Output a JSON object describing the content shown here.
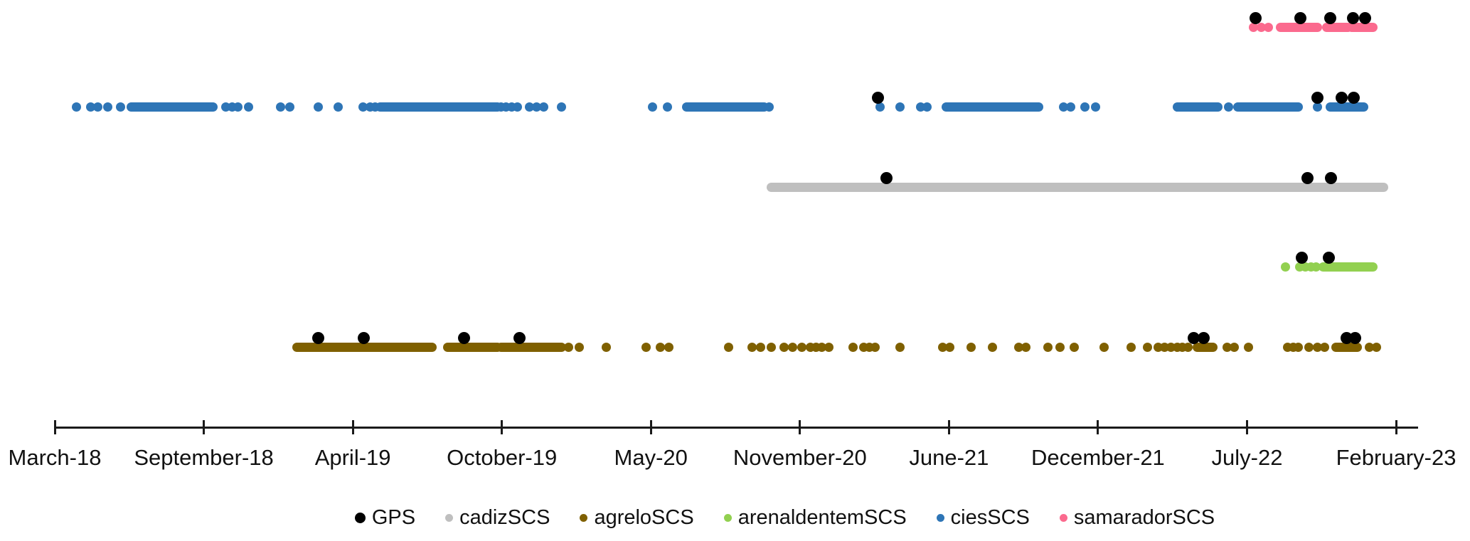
{
  "chart_data": {
    "type": "scatter",
    "title": "",
    "description": "Timeline dot plot of detections per station; x axis is time, each series occupies one horizontal row. t values are months elapsed since March 2018 (0 = March-18, 59 = February-23). Bands are dense runs of overlapping points given as [start,end].",
    "x_axis": {
      "tick_labels": [
        "March-18",
        "September-18",
        "April-19",
        "October-19",
        "May-20",
        "November-20",
        "June-21",
        "December-21",
        "July-22",
        "February-23"
      ],
      "tick_month_offsets": [
        0,
        6,
        13,
        19,
        26,
        32,
        39,
        45,
        52,
        59
      ],
      "unit": "months since 2018-03"
    },
    "series": [
      {
        "name": "samaradorSCS",
        "color": "#FB6A8E",
        "row": 0,
        "points": [
          52.3,
          52.67,
          53.0
        ],
        "bands": [
          [
            53.57,
            55.3
          ],
          [
            55.73,
            56.73
          ],
          [
            56.9,
            57.9
          ]
        ]
      },
      {
        "name": "ciesSCS",
        "color": "#2E75B6",
        "row": 1,
        "points": [
          0.86,
          1.46,
          1.74,
          2.14,
          2.66,
          7.04,
          7.34,
          7.61,
          8.11,
          9.62,
          10.05,
          11.39,
          12.3,
          13.4,
          13.69,
          13.89,
          18.97,
          19.2,
          19.47,
          19.74,
          20.31,
          20.64,
          20.98,
          21.81,
          26.06,
          26.66,
          30.77,
          35.75,
          36.69,
          37.66,
          37.96,
          43.6,
          43.89,
          44.46,
          44.89,
          51.13,
          55.3
        ],
        "bands": [
          [
            3.09,
            6.44
          ],
          [
            14.11,
            18.83
          ],
          [
            27.43,
            30.57
          ],
          [
            38.87,
            42.6
          ],
          [
            48.72,
            50.63
          ],
          [
            51.56,
            54.4
          ],
          [
            55.9,
            57.47
          ]
        ]
      },
      {
        "name": "cadizSCS",
        "color": "#BFBFBF",
        "row": 2,
        "points": [],
        "bands": [
          [
            30.86,
            58.4
          ]
        ]
      },
      {
        "name": "arenaldentemSCS",
        "color": "#92D050",
        "row": 3,
        "points": [
          53.8,
          54.47,
          54.73,
          55.0,
          55.23
        ],
        "bands": [
          [
            55.57,
            57.9
          ]
        ]
      },
      {
        "name": "agreloSCS",
        "color": "#7F6000",
        "row": 4,
        "points": [
          22.15,
          22.65,
          23.89,
          25.77,
          26.37,
          26.71,
          29.14,
          30.06,
          30.43,
          30.86,
          31.37,
          31.71,
          32.1,
          32.5,
          32.77,
          33.04,
          33.37,
          34.51,
          35.01,
          35.25,
          35.52,
          36.69,
          38.7,
          39.03,
          39.89,
          40.74,
          41.8,
          42.09,
          42.97,
          43.46,
          44.03,
          45.3,
          46.54,
          47.31,
          47.81,
          48.11,
          48.42,
          48.72,
          48.95,
          49.22,
          51.06,
          51.4,
          52.07,
          53.9,
          54.17,
          54.4,
          54.9,
          55.3,
          55.63,
          57.73,
          58.07
        ],
        "bands": [
          [
            10.39,
            16.2
          ],
          [
            16.83,
            18.83
          ],
          [
            18.97,
            21.81
          ],
          [
            49.65,
            50.39
          ],
          [
            56.17,
            57.17
          ]
        ]
      },
      {
        "name": "GPS",
        "color": "#000000",
        "overlay": true,
        "points_by_row": [
          {
            "row": 0,
            "t": [
              52.4,
              54.5,
              55.9,
              56.97,
              57.53
            ]
          },
          {
            "row": 1,
            "t": [
              35.68,
              55.3,
              56.43,
              57.0
            ]
          },
          {
            "row": 2,
            "t": [
              36.08,
              54.83,
              55.93
            ]
          },
          {
            "row": 3,
            "t": [
              54.57,
              55.83
            ]
          },
          {
            "row": 4,
            "t": [
              11.39,
              13.43,
              17.49,
              19.84,
              49.49,
              49.95,
              56.67,
              57.07
            ]
          }
        ]
      }
    ],
    "legend": {
      "position": "bottom-center",
      "entries": [
        {
          "label": "GPS",
          "color": "#000000",
          "marker_size": 15
        },
        {
          "label": "cadizSCS",
          "color": "#BFBFBF",
          "marker_size": 11
        },
        {
          "label": "agreloSCS",
          "color": "#7F6000",
          "marker_size": 11
        },
        {
          "label": "arenaldentemSCS",
          "color": "#92D050",
          "marker_size": 11
        },
        {
          "label": "ciesSCS",
          "color": "#2E75B6",
          "marker_size": 11
        },
        {
          "label": "samaradorSCS",
          "color": "#FB6A8E",
          "marker_size": 11
        }
      ]
    },
    "grid": false,
    "background": "#FFFFFF"
  }
}
